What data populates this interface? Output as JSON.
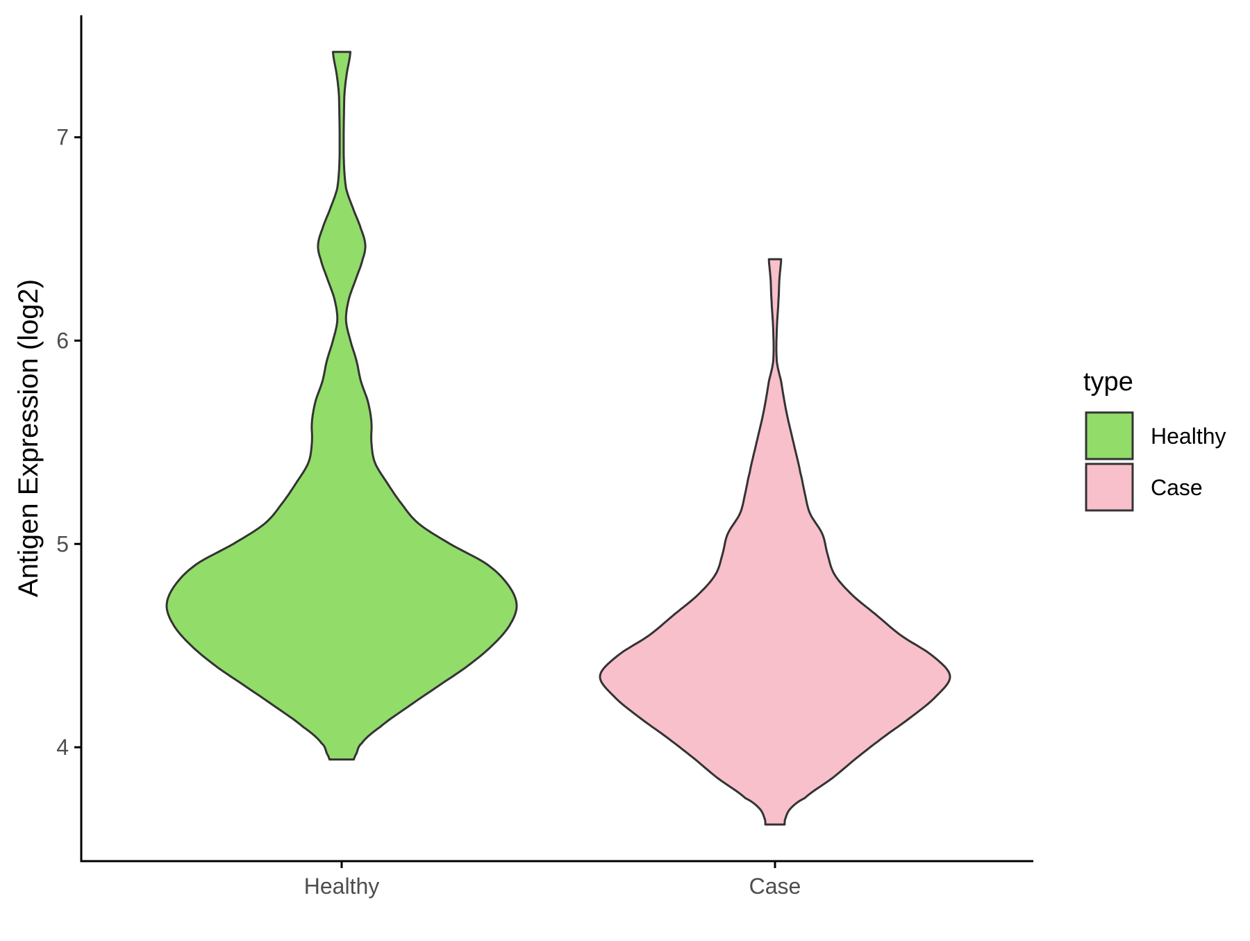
{
  "chart_data": {
    "type": "violin",
    "title": "",
    "xlabel": "",
    "ylabel": "Antigen Expression (log2)",
    "categories": [
      "Healthy",
      "Case"
    ],
    "yticks": [
      4,
      5,
      6,
      7
    ],
    "ylim": [
      3.44,
      7.6
    ],
    "grid": false,
    "legend": {
      "title": "type",
      "position": "right",
      "entries": [
        {
          "label": "Healthy",
          "color": "#92DC6A"
        },
        {
          "label": "Case",
          "color": "#F8C0CB"
        }
      ]
    },
    "outline_color": "#333333",
    "series": [
      {
        "name": "Healthy",
        "color": "#92DC6A",
        "ymin": 3.94,
        "ymax": 7.42,
        "profile": [
          [
            3.94,
            0.07
          ],
          [
            3.97,
            0.085
          ],
          [
            4.02,
            0.115
          ],
          [
            4.1,
            0.22
          ],
          [
            4.2,
            0.38
          ],
          [
            4.3,
            0.55
          ],
          [
            4.4,
            0.72
          ],
          [
            4.5,
            0.86
          ],
          [
            4.6,
            0.96
          ],
          [
            4.7,
            1.0
          ],
          [
            4.8,
            0.95
          ],
          [
            4.9,
            0.83
          ],
          [
            5.0,
            0.62
          ],
          [
            5.1,
            0.44
          ],
          [
            5.2,
            0.34
          ],
          [
            5.3,
            0.26
          ],
          [
            5.4,
            0.19
          ],
          [
            5.5,
            0.17
          ],
          [
            5.6,
            0.17
          ],
          [
            5.7,
            0.15
          ],
          [
            5.8,
            0.11
          ],
          [
            5.9,
            0.085
          ],
          [
            6.0,
            0.05
          ],
          [
            6.1,
            0.025
          ],
          [
            6.2,
            0.04
          ],
          [
            6.3,
            0.08
          ],
          [
            6.4,
            0.12
          ],
          [
            6.47,
            0.135
          ],
          [
            6.55,
            0.11
          ],
          [
            6.65,
            0.065
          ],
          [
            6.75,
            0.025
          ],
          [
            6.9,
            0.012
          ],
          [
            7.2,
            0.015
          ],
          [
            7.3,
            0.027
          ],
          [
            7.42,
            0.05
          ]
        ]
      },
      {
        "name": "Case",
        "color": "#F8C0CB",
        "ymin": 3.62,
        "ymax": 6.4,
        "profile": [
          [
            3.62,
            0.055
          ],
          [
            3.65,
            0.06
          ],
          [
            3.7,
            0.09
          ],
          [
            3.75,
            0.17
          ],
          [
            3.85,
            0.33
          ],
          [
            3.95,
            0.47
          ],
          [
            4.05,
            0.62
          ],
          [
            4.15,
            0.78
          ],
          [
            4.25,
            0.92
          ],
          [
            4.35,
            1.0
          ],
          [
            4.45,
            0.9
          ],
          [
            4.55,
            0.72
          ],
          [
            4.65,
            0.58
          ],
          [
            4.75,
            0.44
          ],
          [
            4.85,
            0.34
          ],
          [
            4.95,
            0.3
          ],
          [
            5.05,
            0.27
          ],
          [
            5.15,
            0.2
          ],
          [
            5.25,
            0.17
          ],
          [
            5.35,
            0.145
          ],
          [
            5.5,
            0.105
          ],
          [
            5.65,
            0.065
          ],
          [
            5.8,
            0.035
          ],
          [
            5.9,
            0.01
          ],
          [
            6.05,
            0.01
          ],
          [
            6.2,
            0.02
          ],
          [
            6.3,
            0.025
          ],
          [
            6.4,
            0.035
          ]
        ]
      }
    ]
  }
}
